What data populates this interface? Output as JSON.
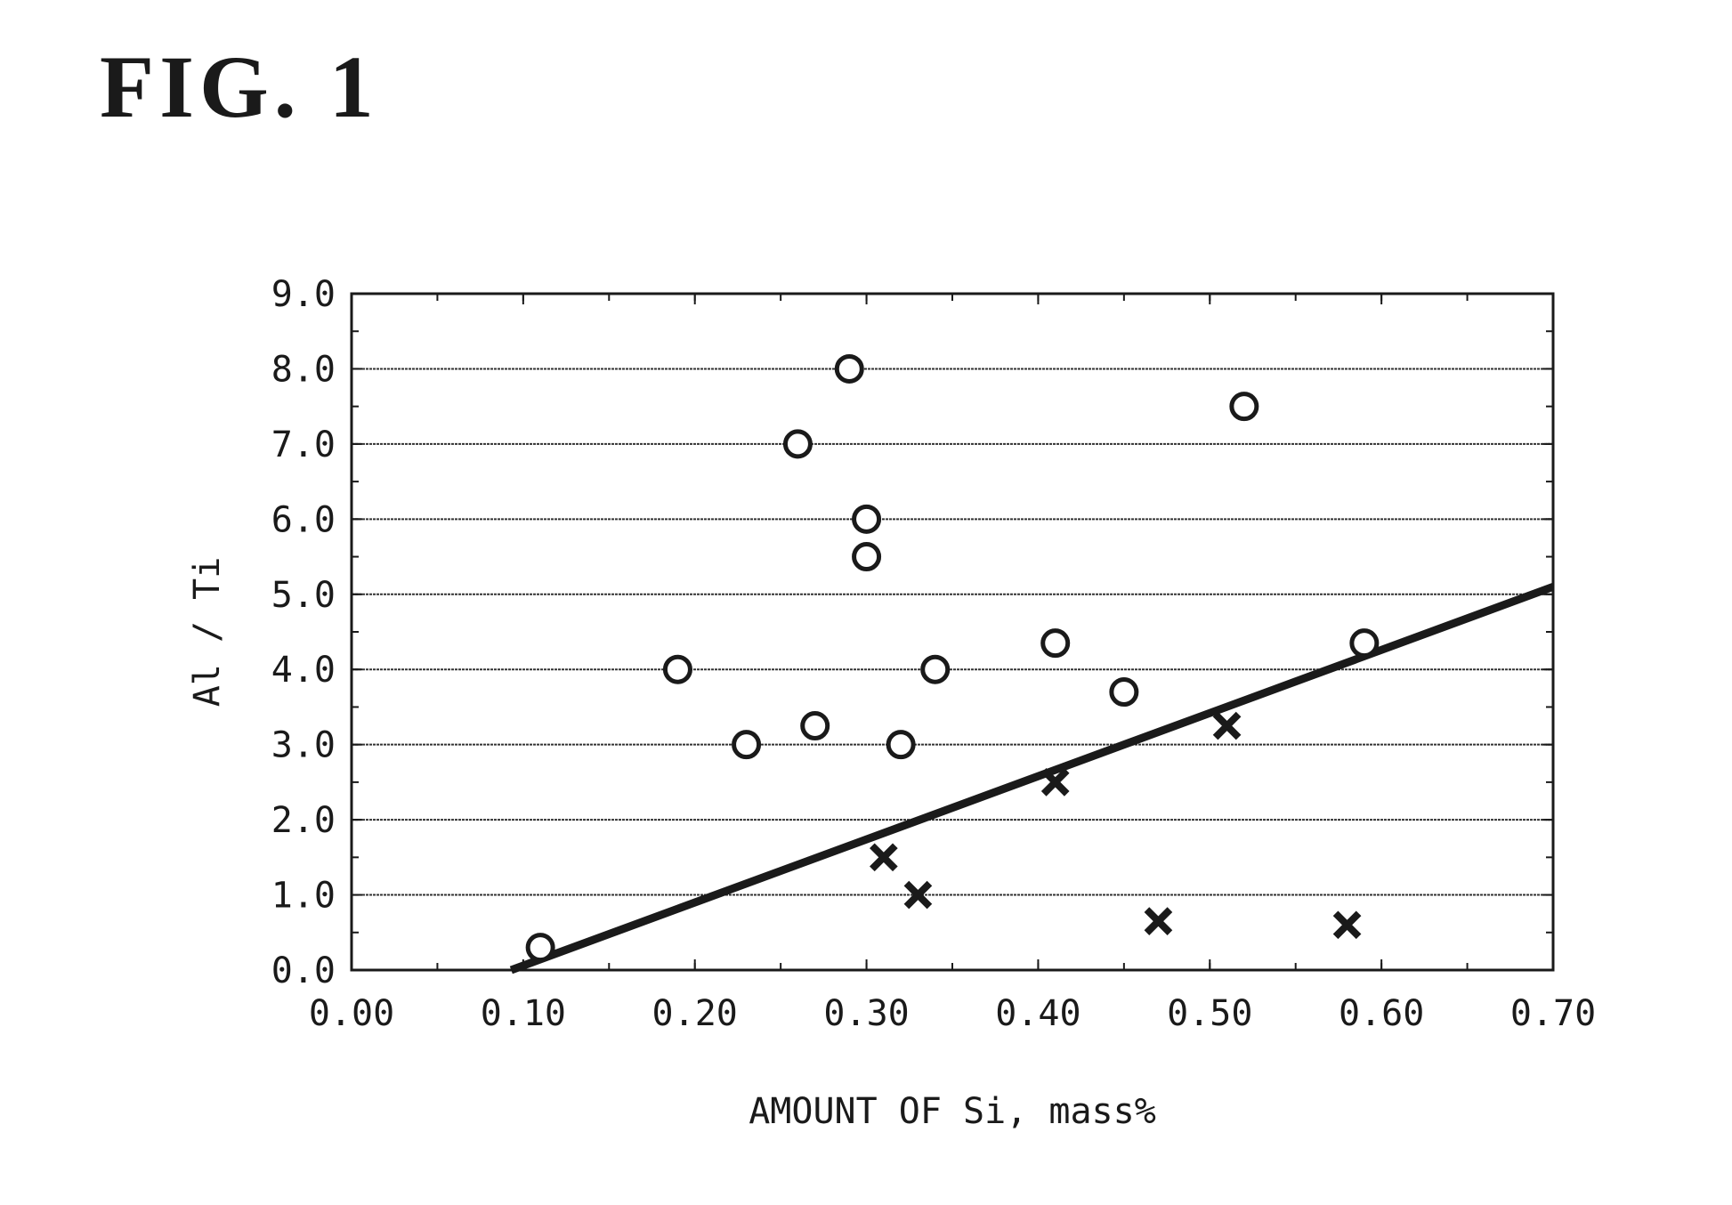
{
  "figure_label": "FIG. 1",
  "chart_data": {
    "type": "scatter",
    "title": "",
    "xlabel": "AMOUNT OF Si, mass%",
    "ylabel": "Al / Ti",
    "xlim": [
      0.0,
      0.7
    ],
    "ylim": [
      0.0,
      9.0
    ],
    "x_ticks": [
      "0.00",
      "0.10",
      "0.20",
      "0.30",
      "0.40",
      "0.50",
      "0.60",
      "0.70"
    ],
    "y_ticks": [
      "0.0",
      "1.0",
      "2.0",
      "3.0",
      "4.0",
      "5.0",
      "6.0",
      "7.0",
      "8.0",
      "9.0"
    ],
    "grid": "horizontal",
    "legend": "none",
    "series": [
      {
        "marker": "circle",
        "points": [
          {
            "x": 0.11,
            "y": 0.3
          },
          {
            "x": 0.19,
            "y": 4.0
          },
          {
            "x": 0.23,
            "y": 3.0
          },
          {
            "x": 0.26,
            "y": 7.0
          },
          {
            "x": 0.27,
            "y": 3.25
          },
          {
            "x": 0.29,
            "y": 8.0
          },
          {
            "x": 0.3,
            "y": 6.0
          },
          {
            "x": 0.3,
            "y": 5.5
          },
          {
            "x": 0.32,
            "y": 3.0
          },
          {
            "x": 0.34,
            "y": 4.0
          },
          {
            "x": 0.41,
            "y": 4.35
          },
          {
            "x": 0.45,
            "y": 3.7
          },
          {
            "x": 0.52,
            "y": 7.5
          },
          {
            "x": 0.59,
            "y": 4.35
          }
        ]
      },
      {
        "marker": "cross",
        "points": [
          {
            "x": 0.31,
            "y": 1.5
          },
          {
            "x": 0.33,
            "y": 1.0
          },
          {
            "x": 0.41,
            "y": 2.5
          },
          {
            "x": 0.47,
            "y": 0.65
          },
          {
            "x": 0.51,
            "y": 3.25
          },
          {
            "x": 0.58,
            "y": 0.6
          }
        ]
      }
    ],
    "line": {
      "x": [
        0.093,
        0.7
      ],
      "y": [
        0.0,
        5.1
      ]
    },
    "colors": {
      "ink": "#1a1a1a",
      "grid": "#333333"
    }
  }
}
